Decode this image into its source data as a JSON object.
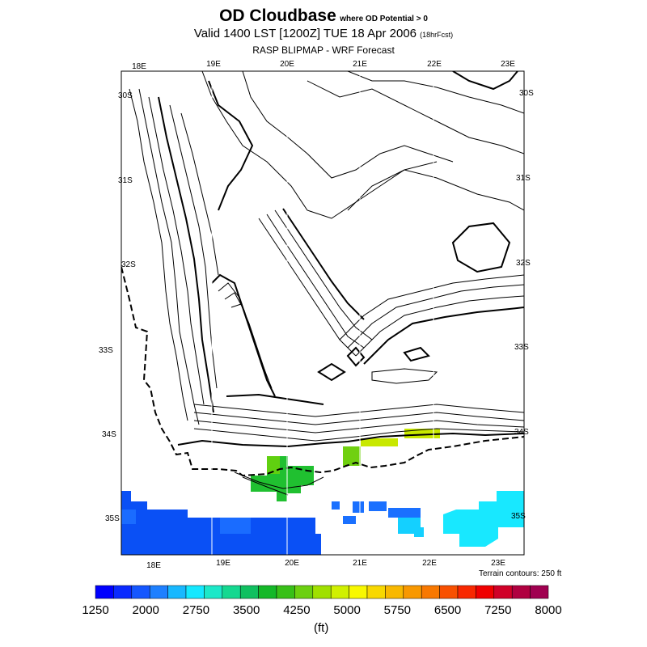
{
  "header": {
    "title": "OD Cloudbase",
    "title_qualifier": "where OD Potential > 0",
    "valid_line": "Valid 1400 LST [1200Z] TUE 18 Apr 2006",
    "forecast_tag": "(18hrFcst)",
    "source": "RASP BLIPMAP - WRF Forecast"
  },
  "map": {
    "top_lon_labels": [
      "18E",
      "19E",
      "20E",
      "21E",
      "22E",
      "23E"
    ],
    "bottom_lon_labels": [
      "18E",
      "19E",
      "20E",
      "21E",
      "22E",
      "23E"
    ],
    "left_lat_labels": [
      "30S",
      "31S",
      "32S",
      "33S",
      "34S",
      "35S"
    ],
    "right_lat_labels": [
      "30S",
      "31S",
      "32S",
      "33S",
      "34S",
      "35S"
    ],
    "terrain_note": "Terrain contours: 250 ft"
  },
  "colorbar": {
    "colors": [
      "#0000ff",
      "#0a2aff",
      "#1456ff",
      "#1e80ff",
      "#18b8ff",
      "#14e8ff",
      "#1ce8c8",
      "#14d890",
      "#10c060",
      "#14b828",
      "#38c018",
      "#6cd010",
      "#a0e000",
      "#d0f000",
      "#f8f800",
      "#f8d800",
      "#f8b800",
      "#f89800",
      "#f87800",
      "#f85000",
      "#f82800",
      "#f00000",
      "#d00028",
      "#b00040",
      "#a00050"
    ],
    "labels": [
      "1250",
      "2000",
      "2750",
      "3500",
      "4250",
      "5000",
      "5750",
      "6500",
      "7250",
      "8000"
    ],
    "units": "(ft)"
  }
}
